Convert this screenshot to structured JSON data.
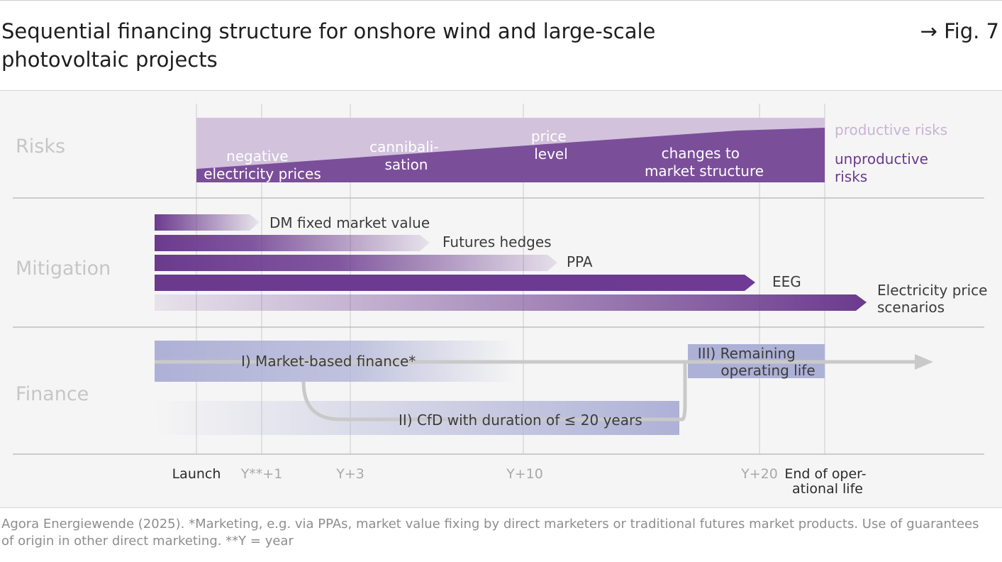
{
  "header": {
    "title": "Sequential financing structure for onshore wind and large-scale photovoltaic projects",
    "fig_ref": "→ Fig. 7"
  },
  "rows": {
    "risks": "Risks",
    "mitigation": "Mitigation",
    "finance": "Finance"
  },
  "risks": {
    "labels": [
      {
        "lines": [
          "negative",
          "electricity prices"
        ]
      },
      {
        "lines": [
          "cannibali-",
          "sation"
        ]
      },
      {
        "lines": [
          "price",
          "level"
        ]
      },
      {
        "lines": [
          "changes to",
          "market structure"
        ]
      }
    ],
    "legend": {
      "productive": "productive risks",
      "unproductive": [
        "unproductive",
        "risks"
      ]
    }
  },
  "mitigation": [
    {
      "label": "DM fixed market value"
    },
    {
      "label": "Futures hedges"
    },
    {
      "label": "PPA"
    },
    {
      "label": "EEG"
    },
    {
      "label": [
        "Electricity price",
        "scenarios"
      ]
    }
  ],
  "finance": {
    "phase1": "I)  Market-based finance*",
    "phase2": "II)  CfD with duration of ≤ 20 years",
    "phase3": [
      "III) Remaining",
      "operating life"
    ]
  },
  "timeline": [
    {
      "label": [
        "Launch"
      ]
    },
    {
      "label": [
        "Y**+1"
      ]
    },
    {
      "label": [
        "Y+3"
      ]
    },
    {
      "label": [
        "Y+10"
      ]
    },
    {
      "label": [
        "Y+20"
      ]
    },
    {
      "label": [
        "End of oper-",
        "ational life"
      ]
    }
  ],
  "colors": {
    "deep_purple": "#6b3a8e",
    "light_purple": "#d2c2dc",
    "lavender": "#a9aed3",
    "grid": "#e2e2e2",
    "divider": "#b8b8b8",
    "gray_text": "#c8c8c8"
  },
  "footer": "Agora Energiewende (2025). *Marketing, e.g. via PPAs, market value fixing by direct marketers or traditional futures market products. Use of guarantees of origin in other direct marketing. **Y = year"
}
